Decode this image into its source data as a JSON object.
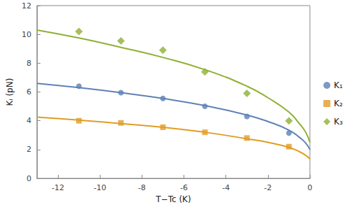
{
  "chart_data": {
    "type": "scatter",
    "x_label": "T−Tc (K)",
    "y_label": "Kᵢ (pN)",
    "xlim": [
      -13,
      0
    ],
    "xticks": [
      -12,
      -10,
      -8,
      -6,
      -4,
      -2,
      0
    ],
    "ylim": [
      0,
      12
    ],
    "yticks": [
      0,
      2,
      4,
      6,
      8,
      10,
      12
    ],
    "grid": false,
    "legend": "right",
    "series": [
      {
        "name": "K₁",
        "color": "#5e81b5",
        "marker": "circle",
        "x": [
          -11,
          -9,
          -7,
          -5,
          -3,
          -1
        ],
        "values": [
          6.4,
          5.95,
          5.55,
          5.0,
          4.3,
          3.15
        ],
        "fit": {
          "x": [
            -13,
            -11,
            -9,
            -7,
            -5,
            -3,
            -2,
            -1,
            -0.5,
            -0.2,
            0
          ],
          "values": [
            6.6,
            6.3,
            5.95,
            5.55,
            5.05,
            4.4,
            3.95,
            3.35,
            2.85,
            2.45,
            2.0
          ]
        }
      },
      {
        "name": "K₂",
        "color": "#e19c24",
        "marker": "square",
        "x": [
          -11,
          -9,
          -7,
          -5,
          -3,
          -1
        ],
        "values": [
          4.0,
          3.85,
          3.55,
          3.2,
          2.8,
          2.2
        ],
        "fit": {
          "x": [
            -13,
            -11,
            -9,
            -7,
            -5,
            -3,
            -2,
            -1,
            -0.5,
            -0.2,
            0
          ],
          "values": [
            4.25,
            4.05,
            3.8,
            3.55,
            3.2,
            2.75,
            2.5,
            2.15,
            1.85,
            1.6,
            1.35
          ]
        }
      },
      {
        "name": "K₃",
        "color": "#8fb032",
        "marker": "diamond",
        "x": [
          -11,
          -9,
          -7,
          -5,
          -3,
          -1
        ],
        "values": [
          10.2,
          9.55,
          8.9,
          7.4,
          5.9,
          4.0
        ],
        "fit": {
          "x": [
            -13,
            -11,
            -9,
            -7,
            -5,
            -3,
            -2,
            -1,
            -0.5,
            -0.2,
            0
          ],
          "values": [
            10.3,
            9.75,
            9.1,
            8.4,
            7.55,
            6.4,
            5.6,
            4.6,
            3.8,
            3.2,
            2.5
          ]
        }
      }
    ]
  }
}
